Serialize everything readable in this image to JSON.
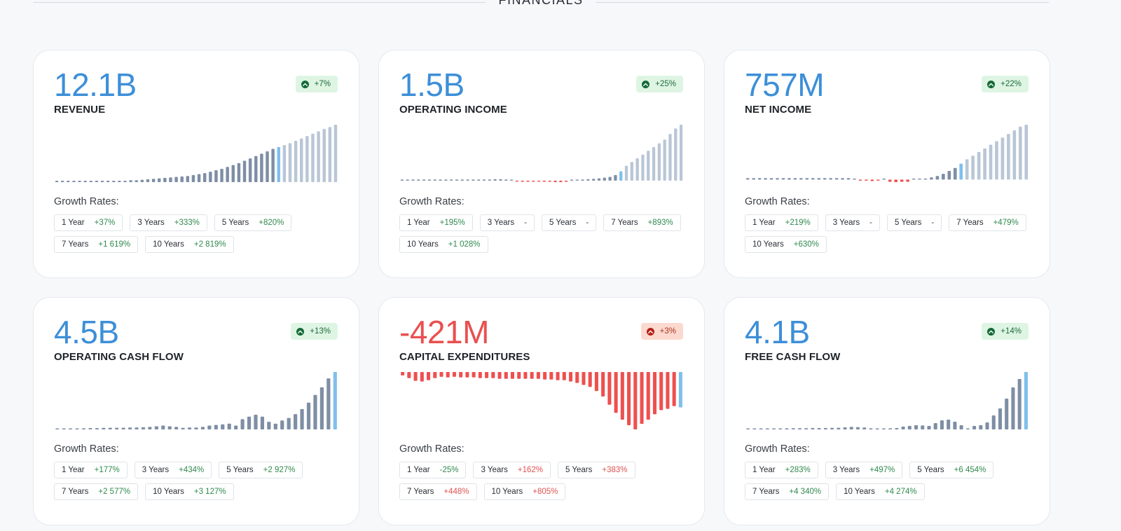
{
  "section": {
    "title": "FINANCIALS"
  },
  "growth_title": "Growth Rates:",
  "cards": [
    {
      "value": "12.1B",
      "label": "REVENUE",
      "tone": "pos",
      "badge": {
        "text": "+7%",
        "dir": "up"
      },
      "growth": [
        {
          "period": "1 Year",
          "value": "+37%"
        },
        {
          "period": "3 Years",
          "value": "+333%"
        },
        {
          "period": "5 Years",
          "value": "+820%"
        },
        {
          "period": "7 Years",
          "value": "+1 619%"
        },
        {
          "period": "10 Years",
          "value": "+2 819%"
        }
      ],
      "chart_data": {
        "type": "bar",
        "values": [
          0.3,
          0.3,
          0.3,
          0.3,
          0.3,
          0.3,
          0.3,
          0.3,
          0.3,
          0.3,
          0.3,
          0.3,
          0.3,
          0.4,
          0.4,
          0.5,
          0.6,
          0.7,
          0.8,
          0.9,
          1,
          1.1,
          1.2,
          1.3,
          1.5,
          1.7,
          1.9,
          2.2,
          2.5,
          2.8,
          3.2,
          3.6,
          4,
          4.5,
          5,
          5.5,
          6,
          6.5,
          7,
          7.4,
          7.8,
          8.2,
          8.7,
          9.2,
          9.7,
          10.2,
          10.7,
          11.2,
          11.6,
          12.1
        ],
        "highlight_index": 39
      }
    },
    {
      "value": "1.5B",
      "label": "OPERATING INCOME",
      "tone": "pos",
      "badge": {
        "text": "+25%",
        "dir": "up"
      },
      "growth": [
        {
          "period": "1 Year",
          "value": "+195%"
        },
        {
          "period": "3 Years",
          "value": "-"
        },
        {
          "period": "5 Years",
          "value": "-"
        },
        {
          "period": "7 Years",
          "value": "+893%"
        },
        {
          "period": "10 Years",
          "value": "+1 028%"
        }
      ],
      "chart_data": {
        "type": "bar",
        "values": [
          0.03,
          0.03,
          0.03,
          0.03,
          0.03,
          0.03,
          0.03,
          0.03,
          0.03,
          0.03,
          0.03,
          0.03,
          0.03,
          0.03,
          0.03,
          0.03,
          0.03,
          0.04,
          0.04,
          0.03,
          0.02,
          -0.02,
          -0.03,
          -0.03,
          -0.02,
          -0.02,
          -0.03,
          -0.03,
          -0.04,
          -0.04,
          -0.03,
          0.01,
          0.02,
          0.03,
          0.04,
          0.05,
          0.06,
          0.08,
          0.1,
          0.15,
          0.25,
          0.4,
          0.5,
          0.6,
          0.7,
          0.8,
          0.9,
          1.0,
          1.1,
          1.25,
          1.4,
          1.5
        ],
        "highlight_index": 40
      }
    },
    {
      "value": "757M",
      "label": "NET INCOME",
      "tone": "pos",
      "badge": {
        "text": "+22%",
        "dir": "up"
      },
      "growth": [
        {
          "period": "1 Year",
          "value": "+219%"
        },
        {
          "period": "3 Years",
          "value": "-"
        },
        {
          "period": "5 Years",
          "value": "-"
        },
        {
          "period": "7 Years",
          "value": "+479%"
        },
        {
          "period": "10 Years",
          "value": "+630%"
        }
      ],
      "chart_data": {
        "type": "bar",
        "values": [
          0.02,
          0.02,
          0.02,
          0.02,
          0.02,
          0.02,
          0.02,
          0.02,
          0.02,
          0.02,
          0.02,
          0.02,
          0.02,
          0.02,
          0.02,
          0.02,
          0.02,
          0.02,
          0,
          -0.01,
          -0.015,
          -0.02,
          -0.01,
          0,
          -0.03,
          -0.035,
          -0.03,
          -0.03,
          0,
          0,
          0.01,
          0.03,
          0.05,
          0.08,
          0.12,
          0.16,
          0.22,
          0.28,
          0.33,
          0.38,
          0.43,
          0.48,
          0.53,
          0.58,
          0.63,
          0.68,
          0.73,
          0.757
        ],
        "highlight_index": 36
      }
    },
    {
      "value": "4.5B",
      "label": "OPERATING CASH FLOW",
      "tone": "pos",
      "badge": {
        "text": "+13%",
        "dir": "up"
      },
      "growth": [
        {
          "period": "1 Year",
          "value": "+177%"
        },
        {
          "period": "3 Years",
          "value": "+434%"
        },
        {
          "period": "5 Years",
          "value": "+2 927%"
        },
        {
          "period": "7 Years",
          "value": "+2 577%"
        },
        {
          "period": "10 Years",
          "value": "+3 127%"
        }
      ],
      "chart_data": {
        "type": "bar",
        "values": [
          0.05,
          0.07,
          0.05,
          0.07,
          0.09,
          0.1,
          0.1,
          0.12,
          0.13,
          0.13,
          0.13,
          0.15,
          0.15,
          0.17,
          0.2,
          0.25,
          0.3,
          0.25,
          0.2,
          0.12,
          0.15,
          0.15,
          0.2,
          0.3,
          0.35,
          0.4,
          0.45,
          0.3,
          0.8,
          1.0,
          1.15,
          1.0,
          0.6,
          0.45,
          0.7,
          0.9,
          1.2,
          1.6,
          2.1,
          2.7,
          3.3,
          4.0,
          4.5
        ],
        "highlight_index": 42
      }
    },
    {
      "value": "-421M",
      "label": "CAPITAL EXPENDITURES",
      "tone": "neg",
      "badge": {
        "text": "+3%",
        "dir": "down"
      },
      "growth": [
        {
          "period": "1 Year",
          "value": "-25%"
        },
        {
          "period": "3 Years",
          "value": "+162%"
        },
        {
          "period": "5 Years",
          "value": "+383%"
        },
        {
          "period": "7 Years",
          "value": "+448%"
        },
        {
          "period": "10 Years",
          "value": "+805%"
        }
      ],
      "chart_data": {
        "type": "bar",
        "values": [
          -25,
          -45,
          -65,
          -70,
          -60,
          -45,
          -35,
          -40,
          -35,
          -40,
          -40,
          -40,
          -45,
          -45,
          -45,
          -50,
          -50,
          -50,
          -50,
          -50,
          -50,
          -50,
          -55,
          -55,
          -60,
          -60,
          -70,
          -80,
          -95,
          -110,
          -140,
          -180,
          -240,
          -300,
          -350,
          -390,
          -421,
          -380,
          -350,
          -310,
          -280,
          -270,
          -250,
          -260
        ],
        "highlight_index": 43
      }
    },
    {
      "value": "4.1B",
      "label": "FREE CASH FLOW",
      "tone": "pos",
      "badge": {
        "text": "+14%",
        "dir": "up"
      },
      "growth": [
        {
          "period": "1 Year",
          "value": "+283%"
        },
        {
          "period": "3 Years",
          "value": "+497%"
        },
        {
          "period": "5 Years",
          "value": "+6 454%"
        },
        {
          "period": "7 Years",
          "value": "+4 340%"
        },
        {
          "period": "10 Years",
          "value": "+4 274%"
        }
      ],
      "chart_data": {
        "type": "bar",
        "values": [
          0.06,
          0.06,
          0.04,
          0.05,
          0.06,
          0.07,
          0.08,
          0.09,
          0.09,
          0.09,
          0.1,
          0.1,
          0.1,
          0.11,
          0.12,
          0.15,
          0.18,
          0.16,
          0.14,
          0.08,
          0.06,
          0.07,
          0.08,
          0.1,
          0.2,
          0.25,
          0.3,
          0.28,
          0.25,
          0.45,
          0.65,
          0.7,
          0.55,
          0.3,
          0.05,
          0.25,
          0.3,
          0.5,
          1.0,
          1.5,
          2.2,
          3.0,
          3.6,
          4.1
        ],
        "highlight_index": 43
      }
    }
  ]
}
